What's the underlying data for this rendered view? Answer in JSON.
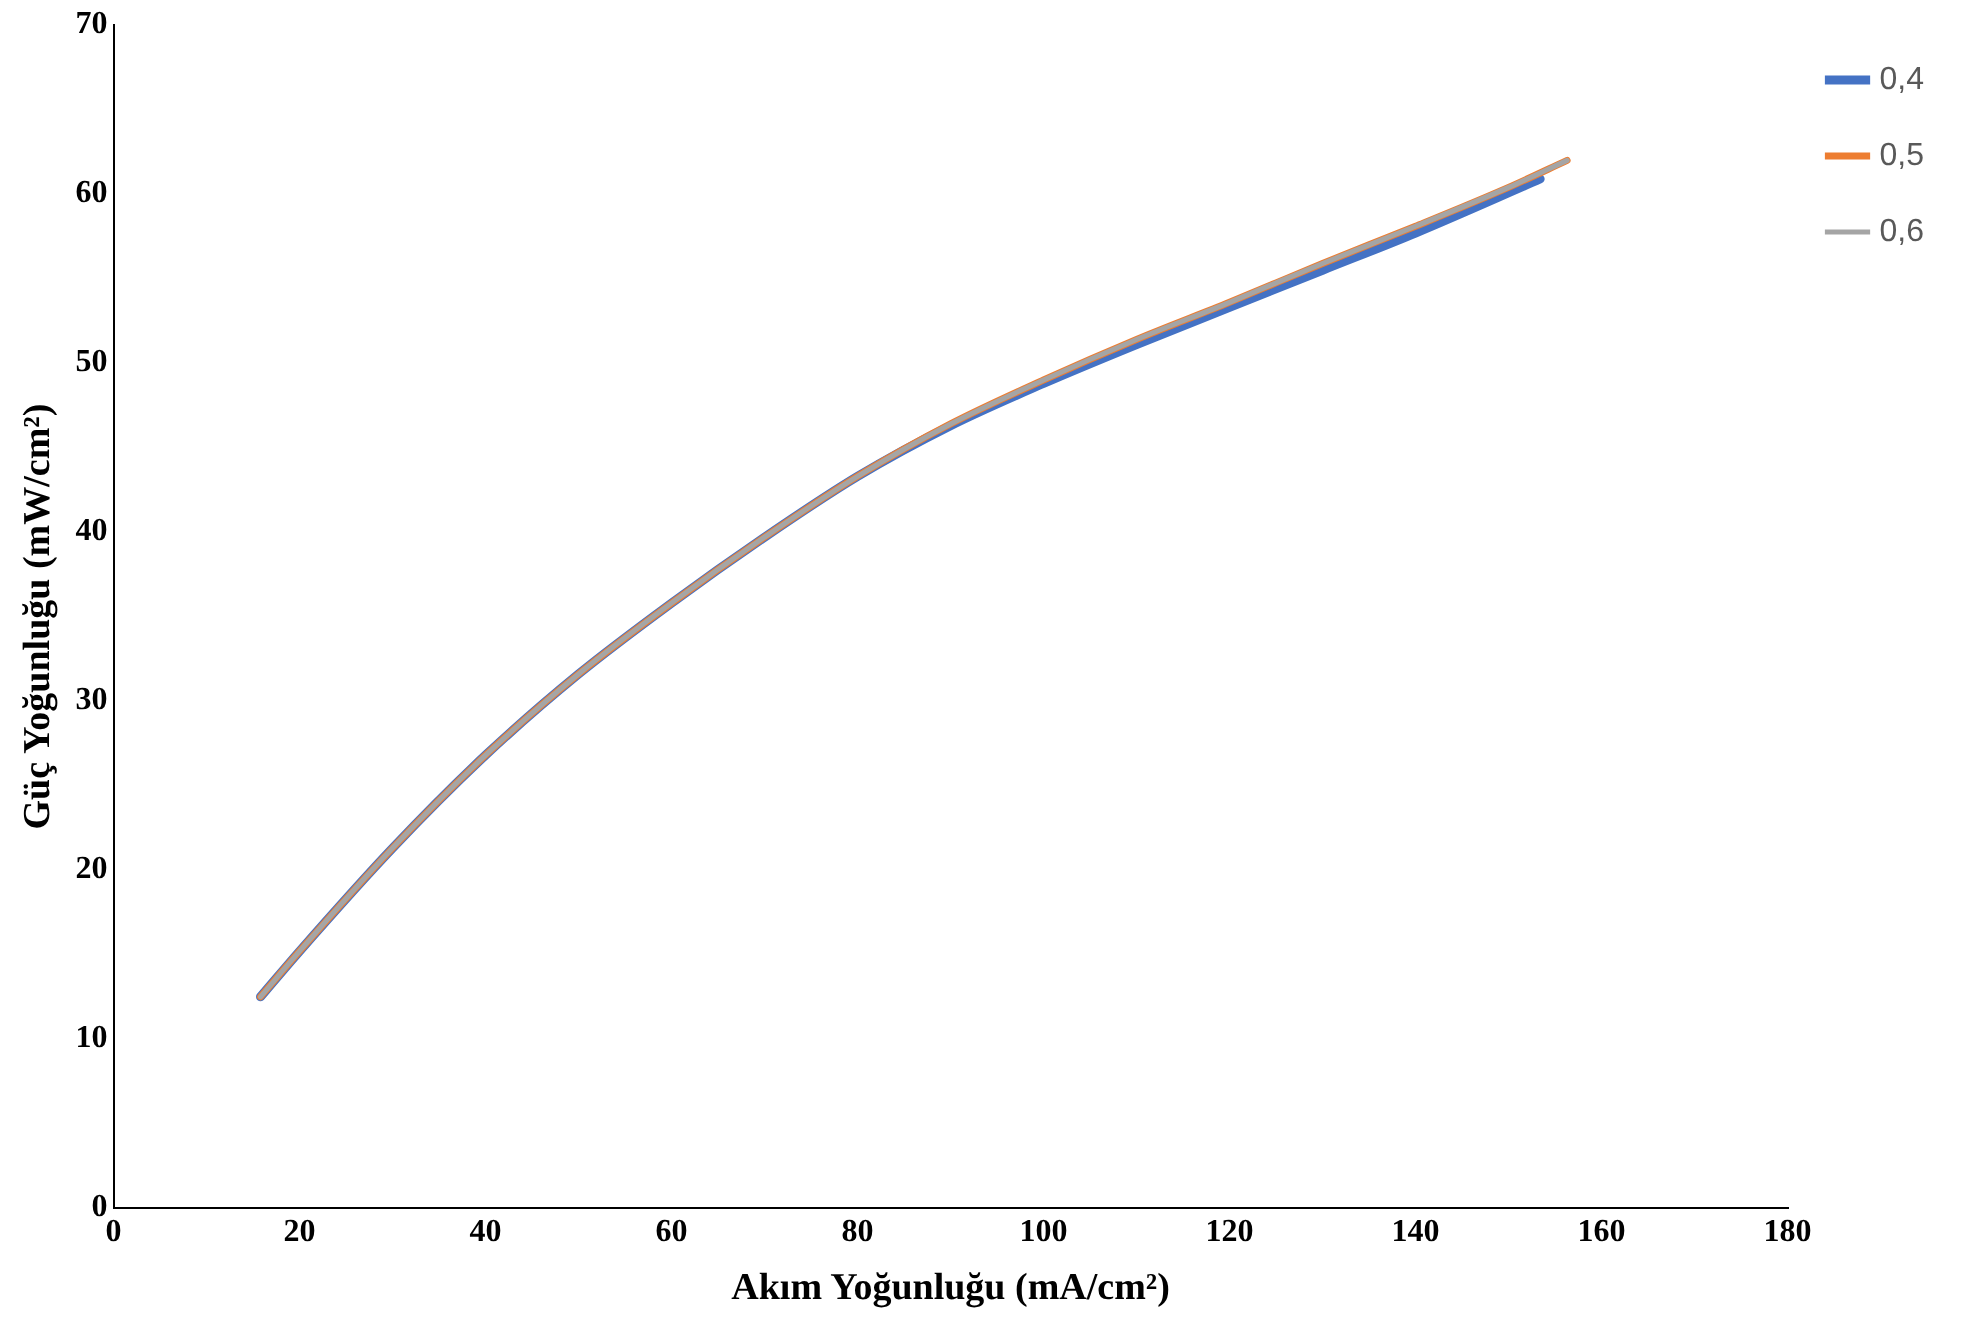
{
  "chart_data": {
    "type": "line",
    "xlabel": "Akım Yoğunluğu (mA/cm²)",
    "ylabel": "Güç Yoğunluğu (mW/cm²)",
    "xlim": [
      0,
      180
    ],
    "xticks": [
      0,
      20,
      40,
      60,
      80,
      100,
      120,
      140,
      160,
      180
    ],
    "ylim": [
      0,
      70
    ],
    "yticks": [
      0,
      10,
      20,
      30,
      40,
      50,
      60,
      70
    ],
    "grid": false,
    "legend": "top right",
    "marker": "none",
    "line_style": "solid",
    "series": [
      {
        "name": "0,4",
        "color": "#4472c4",
        "x": [
          15.8,
          20,
          30,
          40,
          50,
          60,
          70,
          80,
          90,
          100,
          110,
          120,
          130,
          140,
          153.4
        ],
        "values": [
          12.5,
          15.2,
          21.3,
          26.8,
          31.6,
          35.8,
          39.7,
          43.3,
          46.3,
          48.8,
          51.1,
          53.3,
          55.5,
          57.7,
          60.9
        ]
      },
      {
        "name": "0,5",
        "color": "#ed7d31",
        "x": [
          15.8,
          20,
          30,
          40,
          50,
          60,
          70,
          80,
          90,
          100,
          110,
          120,
          130,
          140,
          150,
          156.3
        ],
        "values": [
          12.5,
          15.2,
          21.3,
          26.8,
          31.6,
          35.8,
          39.7,
          43.3,
          46.4,
          49.0,
          51.4,
          53.6,
          55.9,
          58.1,
          60.4,
          62.0
        ]
      },
      {
        "name": "0,6",
        "color": "#a5a5a5",
        "x": [
          15.8,
          20,
          30,
          40,
          50,
          60,
          70,
          80,
          90,
          100,
          110,
          120,
          130,
          140,
          150,
          156.3
        ],
        "values": [
          12.5,
          15.2,
          21.3,
          26.8,
          31.6,
          35.8,
          39.7,
          43.3,
          46.4,
          49.0,
          51.4,
          53.6,
          55.9,
          58.1,
          60.4,
          62.0
        ]
      }
    ]
  }
}
